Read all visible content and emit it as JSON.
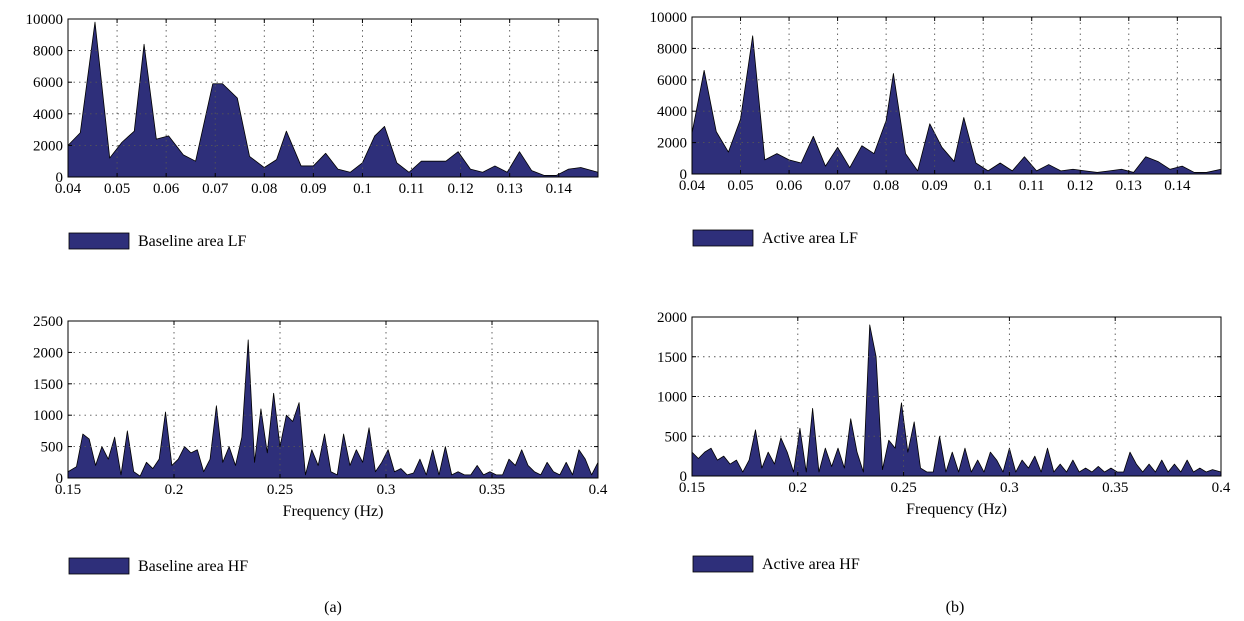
{
  "colors": {
    "fill": "#2e2f7a",
    "stroke": "#000000",
    "grid": "#555555"
  },
  "captions": [
    "(a)",
    "(b)"
  ],
  "chart_data": [
    {
      "id": "baseline-lf",
      "type": "area",
      "xlim": [
        0.04,
        0.148
      ],
      "ylim": [
        0,
        10000
      ],
      "xticks": [
        0.04,
        0.05,
        0.06,
        0.07,
        0.08,
        0.09,
        0.1,
        0.11,
        0.12,
        0.13,
        0.14
      ],
      "xtick_labels": [
        "0.04",
        "0.05",
        "0.06",
        "0.07",
        "0.08",
        "0.09",
        "0.1",
        "0.11",
        "0.12",
        "0.13",
        "0.14"
      ],
      "yticks": [
        0,
        2000,
        4000,
        6000,
        8000,
        10000
      ],
      "ytick_labels": [
        "0",
        "2000",
        "4000",
        "6000",
        "8000",
        "10000"
      ],
      "xlabel": "",
      "grid": true,
      "legend": {
        "label": "Baseline area LF",
        "position": "below"
      },
      "x": [
        0.04,
        0.0425,
        0.0455,
        0.0485,
        0.051,
        0.0535,
        0.0555,
        0.058,
        0.0605,
        0.0635,
        0.066,
        0.0695,
        0.0715,
        0.0745,
        0.077,
        0.08,
        0.0825,
        0.0845,
        0.0875,
        0.09,
        0.0925,
        0.095,
        0.0975,
        0.1,
        0.1025,
        0.1045,
        0.107,
        0.1095,
        0.112,
        0.1145,
        0.117,
        0.1195,
        0.122,
        0.1245,
        0.127,
        0.1295,
        0.132,
        0.1345,
        0.137,
        0.1395,
        0.142,
        0.1445,
        0.148
      ],
      "y": [
        2000,
        2800,
        9800,
        1200,
        2200,
        2900,
        8400,
        2400,
        2600,
        1400,
        1000,
        5900,
        5900,
        5000,
        1300,
        600,
        1100,
        2900,
        700,
        700,
        1500,
        500,
        300,
        900,
        2600,
        3200,
        900,
        300,
        1000,
        1000,
        1000,
        1600,
        500,
        300,
        700,
        300,
        1600,
        400,
        100,
        100,
        500,
        600,
        300
      ]
    },
    {
      "id": "active-lf",
      "type": "area",
      "xlim": [
        0.04,
        0.149
      ],
      "ylim": [
        0,
        10000
      ],
      "xticks": [
        0.04,
        0.05,
        0.06,
        0.07,
        0.08,
        0.09,
        0.1,
        0.11,
        0.12,
        0.13,
        0.14
      ],
      "xtick_labels": [
        "0.04",
        "0.05",
        "0.06",
        "0.07",
        "0.08",
        "0.09",
        "0.1",
        "0.11",
        "0.12",
        "0.13",
        "0.14"
      ],
      "yticks": [
        0,
        2000,
        4000,
        6000,
        8000,
        10000
      ],
      "ytick_labels": [
        "0",
        "2000",
        "4000",
        "6000",
        "8000",
        "10000"
      ],
      "xlabel": "",
      "grid": true,
      "legend": {
        "label": "Active area LF",
        "position": "below"
      },
      "x": [
        0.04,
        0.0425,
        0.045,
        0.0475,
        0.05,
        0.0525,
        0.055,
        0.0575,
        0.06,
        0.0625,
        0.065,
        0.0675,
        0.07,
        0.0725,
        0.075,
        0.0775,
        0.08,
        0.0815,
        0.084,
        0.0865,
        0.089,
        0.0915,
        0.094,
        0.096,
        0.0985,
        0.101,
        0.1035,
        0.106,
        0.1085,
        0.111,
        0.1135,
        0.116,
        0.1185,
        0.121,
        0.1235,
        0.126,
        0.1285,
        0.131,
        0.1335,
        0.136,
        0.1385,
        0.141,
        0.1435,
        0.146,
        0.149
      ],
      "y": [
        2600,
        6600,
        2700,
        1400,
        3500,
        8800,
        900,
        1300,
        900,
        700,
        2400,
        500,
        1700,
        400,
        1800,
        1300,
        3400,
        6400,
        1300,
        200,
        3200,
        1700,
        800,
        3600,
        700,
        200,
        700,
        200,
        1100,
        200,
        600,
        200,
        300,
        200,
        100,
        200,
        300,
        100,
        1100,
        800,
        300,
        500,
        100,
        100,
        300
      ]
    },
    {
      "id": "baseline-hf",
      "type": "area",
      "xlim": [
        0.15,
        0.4
      ],
      "ylim": [
        0,
        2500
      ],
      "xticks": [
        0.15,
        0.2,
        0.25,
        0.3,
        0.35,
        0.4
      ],
      "xtick_labels": [
        "0.15",
        "0.2",
        "0.25",
        "0.3",
        "0.35",
        "0.4"
      ],
      "yticks": [
        0,
        500,
        1000,
        1500,
        2000,
        2500
      ],
      "ytick_labels": [
        "0",
        "500",
        "1000",
        "1500",
        "2000",
        "2500"
      ],
      "xlabel": "Frequency (Hz)",
      "grid": true,
      "legend": {
        "label": "Baseline area HF",
        "position": "below"
      },
      "x": [
        0.15,
        0.154,
        0.157,
        0.16,
        0.163,
        0.166,
        0.169,
        0.172,
        0.175,
        0.178,
        0.181,
        0.184,
        0.187,
        0.19,
        0.193,
        0.196,
        0.199,
        0.202,
        0.205,
        0.208,
        0.211,
        0.214,
        0.217,
        0.22,
        0.223,
        0.226,
        0.229,
        0.232,
        0.235,
        0.238,
        0.241,
        0.244,
        0.247,
        0.25,
        0.253,
        0.256,
        0.259,
        0.262,
        0.265,
        0.268,
        0.271,
        0.274,
        0.277,
        0.28,
        0.283,
        0.286,
        0.289,
        0.292,
        0.295,
        0.298,
        0.301,
        0.304,
        0.307,
        0.31,
        0.313,
        0.316,
        0.319,
        0.322,
        0.325,
        0.328,
        0.331,
        0.334,
        0.337,
        0.34,
        0.343,
        0.346,
        0.349,
        0.352,
        0.355,
        0.358,
        0.361,
        0.364,
        0.367,
        0.37,
        0.373,
        0.376,
        0.379,
        0.382,
        0.385,
        0.388,
        0.391,
        0.394,
        0.397,
        0.4
      ],
      "y": [
        100,
        180,
        700,
        620,
        200,
        500,
        300,
        650,
        50,
        750,
        100,
        30,
        250,
        150,
        300,
        1050,
        200,
        300,
        500,
        400,
        450,
        100,
        300,
        1150,
        250,
        500,
        200,
        650,
        2200,
        250,
        1100,
        400,
        1350,
        500,
        1000,
        900,
        1200,
        50,
        450,
        200,
        700,
        100,
        50,
        700,
        200,
        450,
        250,
        800,
        100,
        250,
        450,
        100,
        150,
        50,
        80,
        300,
        50,
        450,
        50,
        500,
        50,
        100,
        50,
        50,
        200,
        50,
        100,
        50,
        50,
        300,
        200,
        450,
        200,
        100,
        50,
        250,
        100,
        50,
        250,
        50,
        450,
        300,
        50,
        250
      ]
    },
    {
      "id": "active-hf",
      "type": "area",
      "xlim": [
        0.15,
        0.4
      ],
      "ylim": [
        0,
        2000
      ],
      "xticks": [
        0.15,
        0.2,
        0.25,
        0.3,
        0.35,
        0.4
      ],
      "xtick_labels": [
        "0.15",
        "0.2",
        "0.25",
        "0.3",
        "0.35",
        "0.4"
      ],
      "yticks": [
        0,
        500,
        1000,
        1500,
        2000
      ],
      "ytick_labels": [
        "0",
        "500",
        "1000",
        "1500",
        "2000"
      ],
      "xlabel": "Frequency (Hz)",
      "grid": true,
      "legend": {
        "label": "Active area HF",
        "position": "below"
      },
      "x": [
        0.15,
        0.153,
        0.156,
        0.159,
        0.162,
        0.165,
        0.168,
        0.171,
        0.174,
        0.177,
        0.18,
        0.183,
        0.186,
        0.189,
        0.192,
        0.195,
        0.198,
        0.201,
        0.204,
        0.207,
        0.21,
        0.213,
        0.216,
        0.219,
        0.222,
        0.225,
        0.228,
        0.231,
        0.234,
        0.237,
        0.24,
        0.243,
        0.246,
        0.249,
        0.252,
        0.255,
        0.258,
        0.261,
        0.264,
        0.267,
        0.27,
        0.273,
        0.276,
        0.279,
        0.282,
        0.285,
        0.288,
        0.291,
        0.294,
        0.297,
        0.3,
        0.303,
        0.306,
        0.309,
        0.312,
        0.315,
        0.318,
        0.321,
        0.324,
        0.327,
        0.33,
        0.333,
        0.336,
        0.339,
        0.342,
        0.345,
        0.348,
        0.351,
        0.354,
        0.357,
        0.36,
        0.363,
        0.366,
        0.369,
        0.372,
        0.375,
        0.378,
        0.381,
        0.384,
        0.387,
        0.39,
        0.393,
        0.396,
        0.4
      ],
      "y": [
        300,
        220,
        300,
        350,
        200,
        250,
        150,
        200,
        50,
        200,
        580,
        100,
        300,
        150,
        480,
        300,
        50,
        600,
        50,
        850,
        50,
        350,
        120,
        350,
        100,
        720,
        300,
        50,
        1900,
        1500,
        80,
        450,
        350,
        920,
        300,
        680,
        100,
        50,
        50,
        500,
        50,
        300,
        50,
        350,
        50,
        200,
        50,
        300,
        200,
        50,
        350,
        50,
        200,
        100,
        250,
        50,
        350,
        50,
        150,
        50,
        200,
        50,
        100,
        50,
        120,
        50,
        100,
        50,
        50,
        300,
        150,
        50,
        150,
        50,
        200,
        50,
        150,
        50,
        200,
        50,
        100,
        50,
        80,
        50
      ]
    }
  ]
}
